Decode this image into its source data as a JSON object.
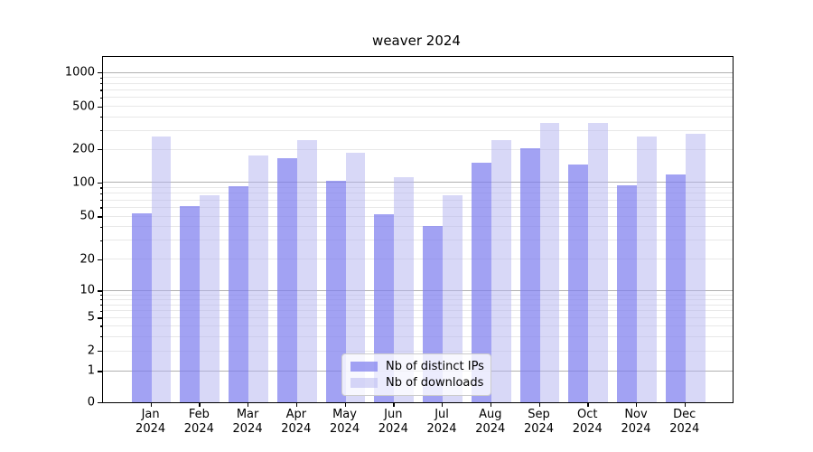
{
  "chart_data": {
    "type": "bar",
    "title": "weaver 2024",
    "categories": [
      "Jan 2024",
      "Feb 2024",
      "Mar 2024",
      "Apr 2024",
      "May 2024",
      "Jun 2024",
      "Jul 2024",
      "Aug 2024",
      "Sep 2024",
      "Oct 2024",
      "Nov 2024",
      "Dec 2024"
    ],
    "series": [
      {
        "name": "Nb of distinct IPs",
        "color": "rgba(126,126,238,0.72)",
        "values": [
          53,
          61,
          92,
          165,
          102,
          52,
          40,
          148,
          204,
          143,
          93,
          116
        ]
      },
      {
        "name": "Nb of downloads",
        "color": "rgba(180,180,240,0.52)",
        "values": [
          260,
          76,
          175,
          240,
          185,
          110,
          76,
          240,
          345,
          345,
          260,
          275
        ]
      }
    ],
    "xlabel": "",
    "ylabel": "",
    "yscale": "log-like (compressed below 10, linear 0-1)",
    "ylim": [
      0,
      1370
    ],
    "ytick_labels": [
      "0",
      "1",
      "2",
      "5",
      "10",
      "20",
      "50",
      "100",
      "200",
      "500",
      "1000"
    ],
    "scale_anchors": [
      [
        0,
        0.0
      ],
      [
        1,
        0.0904
      ],
      [
        2,
        0.1488
      ],
      [
        5,
        0.2449
      ],
      [
        10,
        0.3235
      ],
      [
        20,
        0.4151
      ],
      [
        50,
        0.539
      ],
      [
        100,
        0.6378
      ],
      [
        200,
        0.7339
      ],
      [
        500,
        0.8578
      ],
      [
        1000,
        0.9565
      ]
    ],
    "grid_major": [
      1,
      10,
      100,
      1000
    ],
    "grid_minor": [
      2,
      3,
      4,
      5,
      6,
      7,
      8,
      9,
      20,
      30,
      40,
      50,
      60,
      70,
      80,
      90,
      200,
      300,
      400,
      500,
      600,
      700,
      800,
      900
    ],
    "legend_position": "lower center",
    "grid": "on"
  },
  "colors": {
    "grid_major": "#b0b0b0",
    "grid_minor": "#e8e8e8",
    "axis": "#000000",
    "legend_border": "#cccccc"
  }
}
